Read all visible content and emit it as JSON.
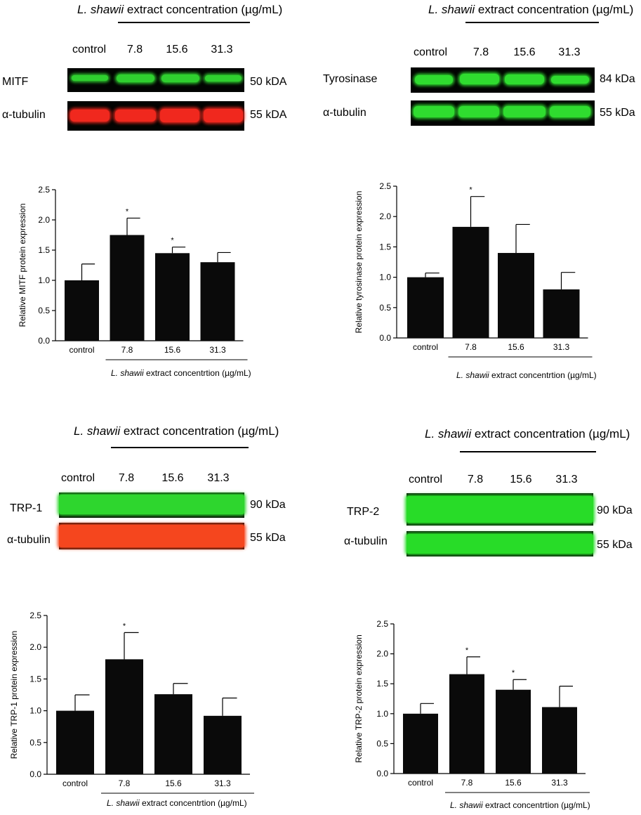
{
  "chart_data": [
    {
      "type": "bar",
      "panel": "MITF",
      "blot": {
        "header": {
          "species": "L. shawii",
          "rest": " extract concentration (µg/mL)"
        },
        "lanes": [
          "control",
          "7.8",
          "15.6",
          "31.3"
        ],
        "rows": [
          {
            "label": "MITF",
            "kda": "50 kDA",
            "color": "#2fd02f"
          },
          {
            "label": "α-tubulin",
            "kda": "55 kDA",
            "color": "#f0281e"
          }
        ]
      },
      "categories": [
        "control",
        "7.8",
        "15.6",
        "31.3"
      ],
      "values": [
        1.0,
        1.75,
        1.45,
        1.3
      ],
      "errors": [
        0.27,
        0.28,
        0.1,
        0.16
      ],
      "significance": [
        "",
        "*",
        "*",
        ""
      ],
      "ylabel": "Relative MITF protein expression",
      "xlabel": {
        "species": "L. shawii",
        "rest": " extract concentrtion (µg/mL)"
      },
      "ylim": [
        0,
        2.5
      ],
      "yticks": [
        "0.0",
        "0.5",
        "1.0",
        "1.5",
        "2.0",
        "2.5"
      ]
    },
    {
      "type": "bar",
      "panel": "Tyrosinase",
      "blot": {
        "header": {
          "species": "L. shawii",
          "rest": " extract concentration (µg/mL)"
        },
        "lanes": [
          "control",
          "7.8",
          "15.6",
          "31.3"
        ],
        "rows": [
          {
            "label": "Tyrosinase",
            "kda": "84 kDa",
            "color": "#2fdc2f"
          },
          {
            "label": "α-tubulin",
            "kda": "55 kDa",
            "color": "#2fdc2f"
          }
        ]
      },
      "categories": [
        "control",
        "7.8",
        "15.6",
        "31.3"
      ],
      "values": [
        1.0,
        1.83,
        1.4,
        0.8
      ],
      "errors": [
        0.07,
        0.5,
        0.47,
        0.28
      ],
      "significance": [
        "",
        "*",
        "",
        ""
      ],
      "ylabel": "Relative tyrosinase protein expression",
      "xlabel": {
        "species": "L. shawii",
        "rest": " extract concentrtion (µg/mL)"
      },
      "ylim": [
        0,
        2.5
      ],
      "yticks": [
        "0.0",
        "0.5",
        "1.0",
        "1.5",
        "2.0",
        "2.5"
      ]
    },
    {
      "type": "bar",
      "panel": "TRP-1",
      "blot": {
        "header": {
          "species": "L. shawii",
          "rest": " extract concentration (µg/mL)"
        },
        "lanes": [
          "control",
          "7.8",
          "15.6",
          "31.3"
        ],
        "rows": [
          {
            "label": "TRP-1",
            "kda": "90 kDa",
            "color": "#2ed62e"
          },
          {
            "label": "α-tubulin",
            "kda": "55 kDa",
            "color": "#f5461e"
          }
        ]
      },
      "categories": [
        "control",
        "7.8",
        "15.6",
        "31.3"
      ],
      "values": [
        1.0,
        1.81,
        1.26,
        0.92
      ],
      "errors": [
        0.25,
        0.42,
        0.17,
        0.28
      ],
      "significance": [
        "",
        "*",
        "",
        ""
      ],
      "ylabel": "Relative TRP-1 protein expression",
      "xlabel": {
        "species": "L. shawii",
        "rest": " extract concentrtion (µg/mL)"
      },
      "ylim": [
        0,
        2.5
      ],
      "yticks": [
        "0.0",
        "0.5",
        "1.0",
        "1.5",
        "2.0",
        "2.5"
      ]
    },
    {
      "type": "bar",
      "panel": "TRP-2",
      "blot": {
        "header": {
          "species": "L. shawii",
          "rest": " extract concentration (µg/mL)"
        },
        "lanes": [
          "control",
          "7.8",
          "15.6",
          "31.3"
        ],
        "rows": [
          {
            "label": "TRP-2",
            "kda": "90 kDa",
            "color": "#28dc28"
          },
          {
            "label": "α-tubulin",
            "kda": "55 kDa",
            "color": "#28dc28"
          }
        ]
      },
      "categories": [
        "control",
        "7.8",
        "15.6",
        "31.3"
      ],
      "values": [
        1.0,
        1.66,
        1.4,
        1.11
      ],
      "errors": [
        0.17,
        0.29,
        0.17,
        0.35
      ],
      "significance": [
        "",
        "*",
        "*",
        ""
      ],
      "ylabel": "Relative TRP-2 protein expression",
      "xlabel": {
        "species": "L. shawii",
        "rest": " extract concentrtion (µg/mL)"
      },
      "ylim": [
        0,
        2.5
      ],
      "yticks": [
        "0.0",
        "0.5",
        "1.0",
        "1.5",
        "2.0",
        "2.5"
      ]
    }
  ]
}
